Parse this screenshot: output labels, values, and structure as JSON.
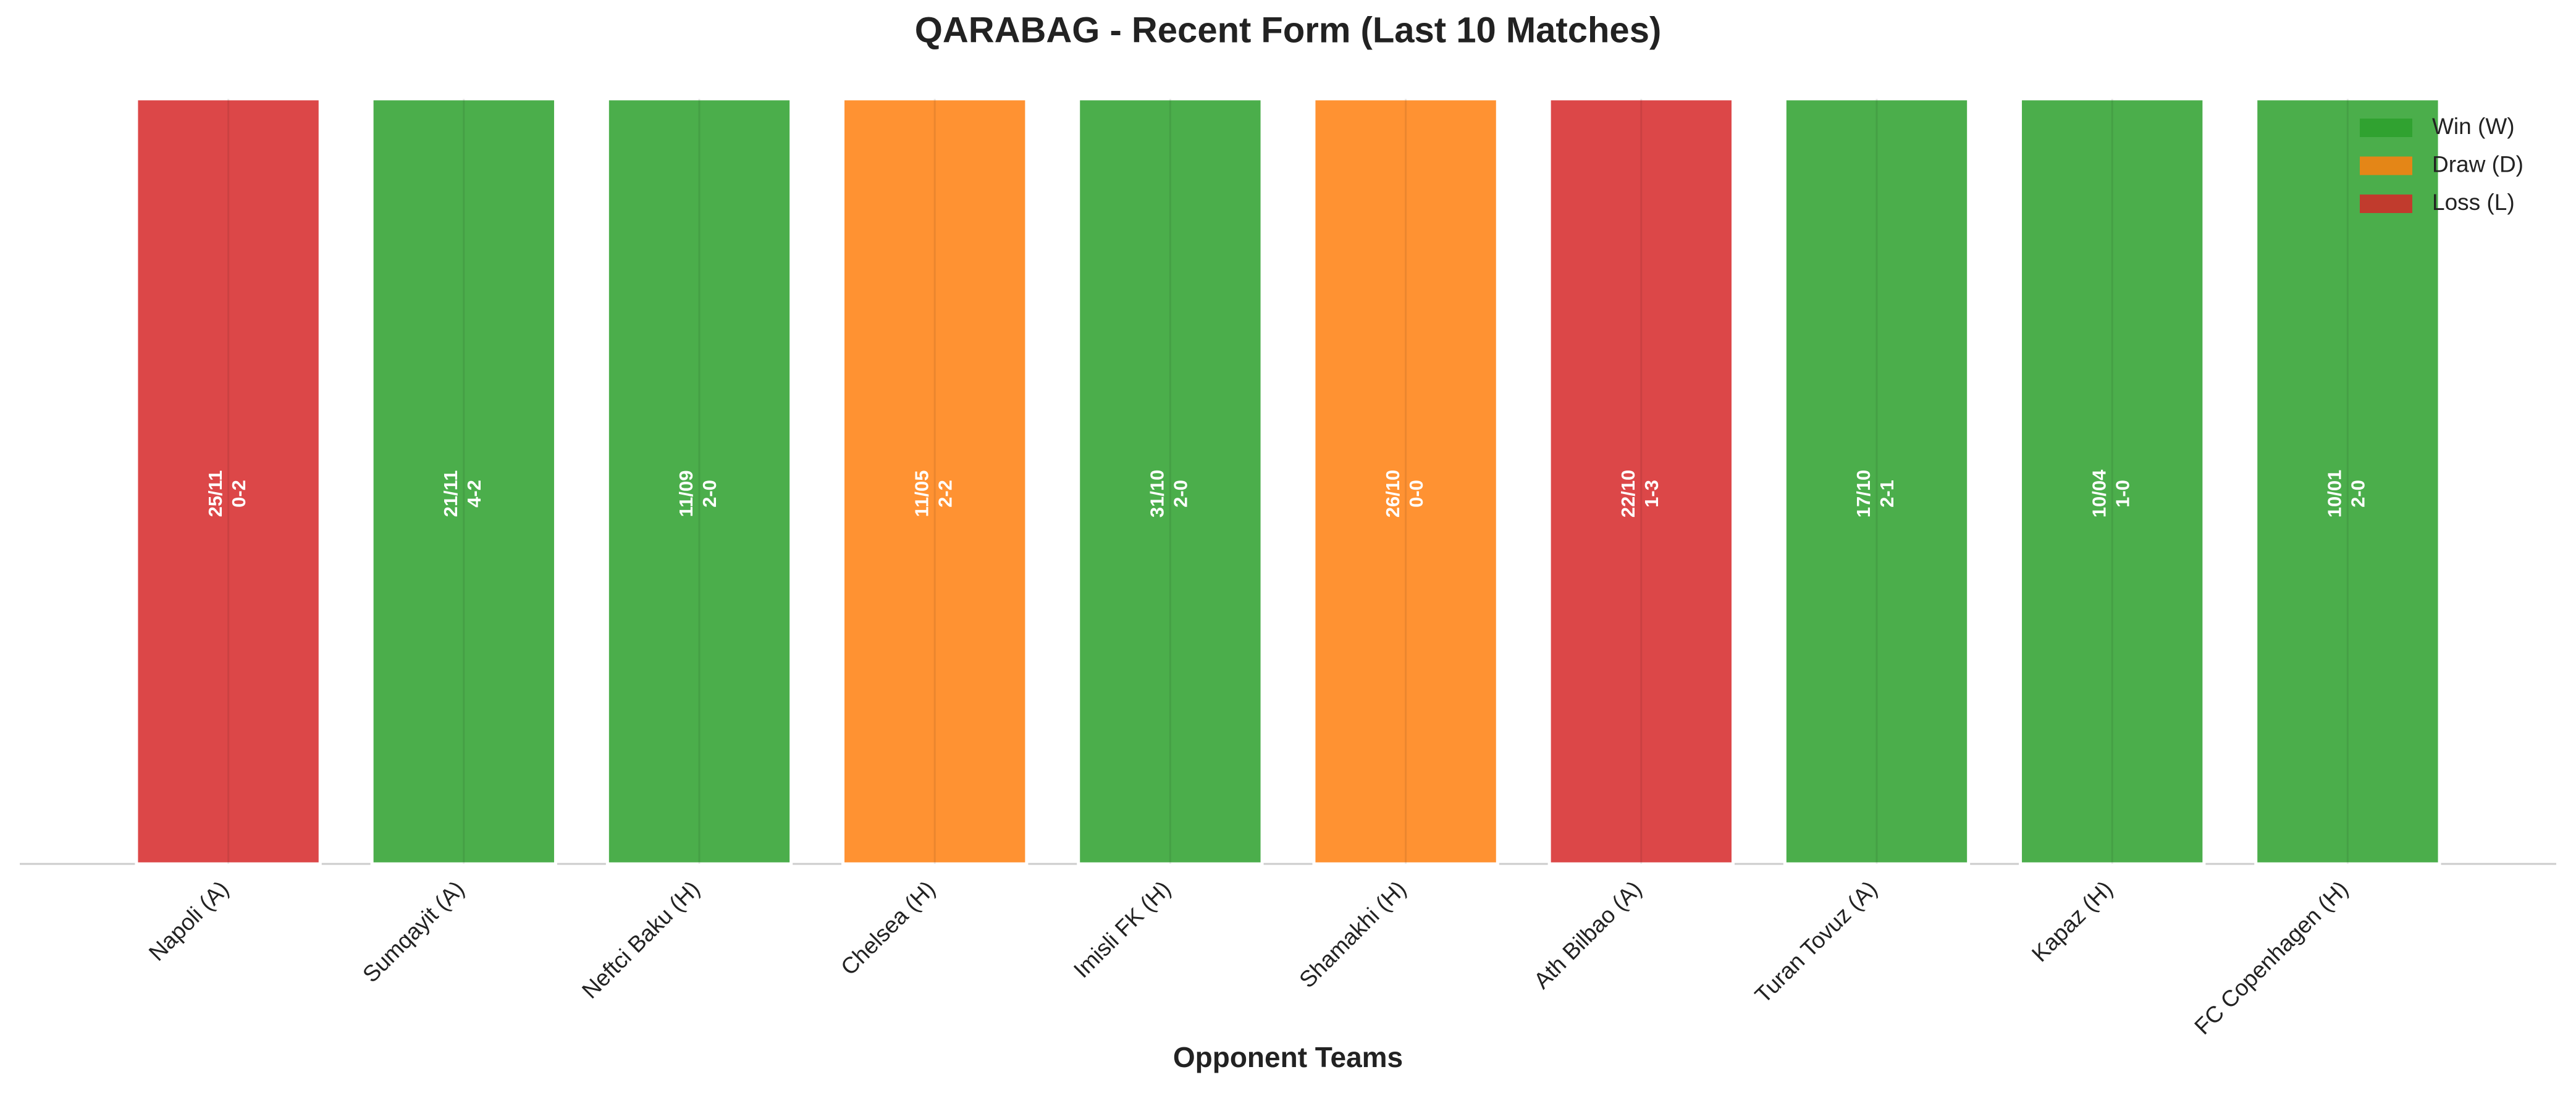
{
  "chart_data": {
    "type": "bar",
    "title": "QARABAG - Recent Form (Last 10 Matches)",
    "xlabel": "Opponent Teams",
    "categories": [
      "Napoli (A)",
      "Sumqayit (A)",
      "Neftci Baku (H)",
      "Chelsea (H)",
      "Imisli FK (H)",
      "Shamakhi (H)",
      "Ath Bilbao (A)",
      "Turan Tovuz (A)",
      "Kapaz (H)",
      "FC Copenhagen (H)"
    ],
    "values": [
      1,
      1,
      1,
      1,
      1,
      1,
      1,
      1,
      1,
      1
    ],
    "dates": [
      "25/11",
      "21/11",
      "11/09",
      "11/05",
      "31/10",
      "26/10",
      "22/10",
      "17/10",
      "10/04",
      "10/01"
    ],
    "scores": [
      "0-2",
      "4-2",
      "2-0",
      "2-2",
      "2-0",
      "0-0",
      "1-3",
      "2-1",
      "1-0",
      "2-0"
    ],
    "colors": [
      "#d62728",
      "#2ca02c",
      "#2ca02c",
      "#ff7f0e",
      "#2ca02c",
      "#ff7f0e",
      "#d62728",
      "#2ca02c",
      "#2ca02c",
      "#2ca02c"
    ],
    "ylim": [
      0,
      1.05
    ],
    "legend_position": "upper right",
    "legend": [
      {
        "name": "Win (W)",
        "color": "#2ca02c"
      },
      {
        "name": "Draw (D)",
        "color": "#ff7f0e"
      },
      {
        "name": "Loss (L)",
        "color": "#d62728"
      }
    ]
  }
}
